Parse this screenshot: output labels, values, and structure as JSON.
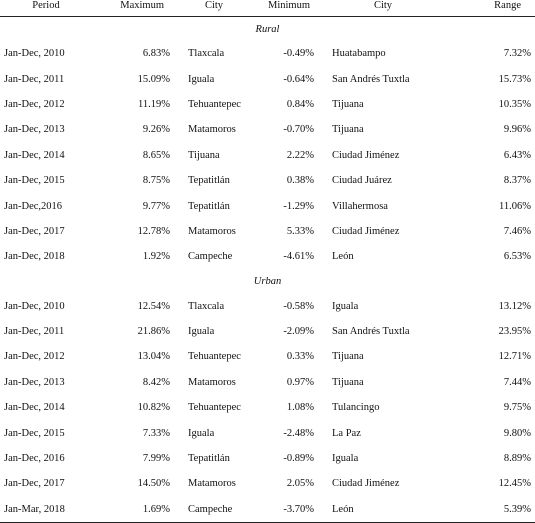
{
  "header": {
    "period": "Period",
    "maximum": "Maximum",
    "city_max": "City",
    "minimum": "Minimum",
    "city_min": "City",
    "range": "Range"
  },
  "rural": {
    "label": "Rural",
    "rows": [
      {
        "period": "Jan-Dec, 2010",
        "max": "6.83%",
        "city_max": "Tlaxcala",
        "min": "-0.49%",
        "city_min": "Huatabampo",
        "range": "7.32%"
      },
      {
        "period": "Jan-Dec, 2011",
        "max": "15.09%",
        "city_max": "Iguala",
        "min": "-0.64%",
        "city_min": "San Andrés Tuxtla",
        "range": "15.73%"
      },
      {
        "period": "Jan-Dec, 2012",
        "max": "11.19%",
        "city_max": "Tehuantepec",
        "min": "0.84%",
        "city_min": "Tijuana",
        "range": "10.35%"
      },
      {
        "period": "Jan-Dec, 2013",
        "max": "9.26%",
        "city_max": "Matamoros",
        "min": "-0.70%",
        "city_min": "Tijuana",
        "range": "9.96%"
      },
      {
        "period": "Jan-Dec, 2014",
        "max": "8.65%",
        "city_max": "Tijuana",
        "min": "2.22%",
        "city_min": "Ciudad Jiménez",
        "range": "6.43%"
      },
      {
        "period": "Jan-Dec, 2015",
        "max": "8.75%",
        "city_max": "Tepatitlán",
        "min": "0.38%",
        "city_min": "Ciudad Juárez",
        "range": "8.37%"
      },
      {
        "period": "Jan-Dec,2016",
        "max": "9.77%",
        "city_max": "Tepatitlán",
        "min": "-1.29%",
        "city_min": "Villahermosa",
        "range": "11.06%"
      },
      {
        "period": "Jan-Dec, 2017",
        "max": "12.78%",
        "city_max": "Matamoros",
        "min": "5.33%",
        "city_min": "Ciudad Jiménez",
        "range": "7.46%"
      },
      {
        "period": "Jan-Dec, 2018",
        "max": "1.92%",
        "city_max": "Campeche",
        "min": "-4.61%",
        "city_min": "León",
        "range": "6.53%"
      }
    ]
  },
  "urban": {
    "label": "Urban",
    "rows": [
      {
        "period": "Jan-Dec, 2010",
        "max": "12.54%",
        "city_max": "Tlaxcala",
        "min": "-0.58%",
        "city_min": "Iguala",
        "range": "13.12%"
      },
      {
        "period": "Jan-Dec, 2011",
        "max": "21.86%",
        "city_max": "Iguala",
        "min": "-2.09%",
        "city_min": "San Andrés Tuxtla",
        "range": "23.95%"
      },
      {
        "period": "Jan-Dec, 2012",
        "max": "13.04%",
        "city_max": "Tehuantepec",
        "min": "0.33%",
        "city_min": "Tijuana",
        "range": "12.71%"
      },
      {
        "period": "Jan-Dec, 2013",
        "max": "8.42%",
        "city_max": "Matamoros",
        "min": "0.97%",
        "city_min": "Tijuana",
        "range": "7.44%"
      },
      {
        "period": "Jan-Dec, 2014",
        "max": "10.82%",
        "city_max": "Tehuantepec",
        "min": "1.08%",
        "city_min": "Tulancingo",
        "range": "9.75%"
      },
      {
        "period": "Jan-Dec, 2015",
        "max": "7.33%",
        "city_max": "Iguala",
        "min": "-2.48%",
        "city_min": "La Paz",
        "range": "9.80%"
      },
      {
        "period": "Jan-Dec, 2016",
        "max": "7.99%",
        "city_max": "Tepatitlán",
        "min": "-0.89%",
        "city_min": "Iguala",
        "range": "8.89%"
      },
      {
        "period": "Jan-Dec, 2017",
        "max": "14.50%",
        "city_max": "Matamoros",
        "min": "2.05%",
        "city_min": "Ciudad Jiménez",
        "range": "12.45%"
      },
      {
        "period": "Jan-Mar, 2018",
        "max": "1.69%",
        "city_max": "Campeche",
        "min": "-3.70%",
        "city_min": "León",
        "range": "5.39%"
      }
    ]
  }
}
